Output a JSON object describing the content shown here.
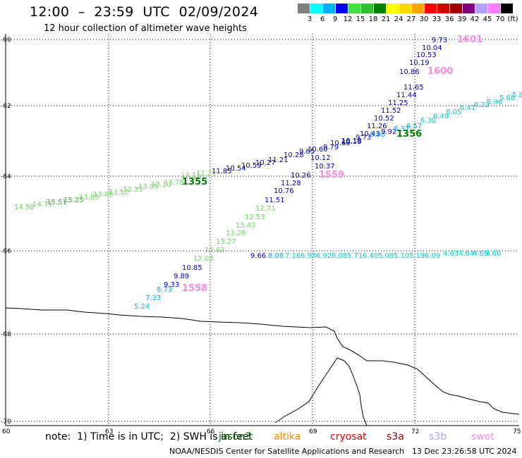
{
  "header": {
    "title": "12:00  –  23:59  UTC  02/09/2024",
    "subtitle": "12 hour collection of altimeter wave heights"
  },
  "legend": {
    "colors": [
      "#808080",
      "#00ffff",
      "#00b0ff",
      "#0000ff",
      "#40e040",
      "#30c030",
      "#008000",
      "#ffff00",
      "#ffd700",
      "#ffa500",
      "#ff0000",
      "#d00000",
      "#a00000",
      "#800080",
      "#b0a0ff",
      "#ff80ff",
      "#000000"
    ],
    "labels": [
      "3",
      "6",
      "9",
      "12",
      "15",
      "18",
      "21",
      "24",
      "27",
      "30",
      "33",
      "36",
      "39",
      "42",
      "45",
      "70",
      "(ft)"
    ]
  },
  "map": {
    "lat_labels": [
      "-60",
      "-62",
      "-64",
      "-66",
      "-68",
      "-70"
    ],
    "lon_labels": [
      "60",
      "63",
      "66",
      "69",
      "72",
      "75"
    ],
    "track_a": [
      {
        "v": "9.73",
        "c": "#0000cc"
      },
      {
        "v": "10.04",
        "c": "#0000cc"
      },
      {
        "v": "10.53",
        "c": "#0000cc"
      },
      {
        "v": "10.19",
        "c": "#0000cc"
      },
      {
        "v": "10.86",
        "c": "#0000cc"
      },
      {
        "v": "11.65",
        "c": "#0000cc"
      },
      {
        "v": "11.44",
        "c": "#0000cc"
      },
      {
        "v": "11.25",
        "c": "#0000cc"
      },
      {
        "v": "11.52",
        "c": "#0000cc"
      },
      {
        "v": "10.52",
        "c": "#0000cc"
      },
      {
        "v": "11.26",
        "c": "#0000cc"
      },
      {
        "v": "10.43",
        "c": "#0000cc"
      },
      {
        "v": "10.18",
        "c": "#0000cc"
      },
      {
        "v": "10.37",
        "c": "#0000cc"
      },
      {
        "v": "10.12",
        "c": "#0000cc"
      },
      {
        "v": "10.26",
        "c": "#0000cc"
      },
      {
        "v": "11.28",
        "c": "#0000cc"
      },
      {
        "v": "10.76",
        "c": "#0000cc"
      },
      {
        "v": "11.51",
        "c": "#0000cc"
      },
      {
        "v": "12.71",
        "c": "#66dd55"
      },
      {
        "v": "12.53",
        "c": "#66dd55"
      },
      {
        "v": "13.43",
        "c": "#66dd55"
      },
      {
        "v": "13.29",
        "c": "#66dd55"
      },
      {
        "v": "13.27",
        "c": "#66dd55"
      },
      {
        "v": "12.62",
        "c": "#66dd55"
      },
      {
        "v": "12.05",
        "c": "#66dd55"
      },
      {
        "v": "10.85",
        "c": "#0000cc"
      },
      {
        "v": "9.89",
        "c": "#0000cc"
      },
      {
        "v": "9.33",
        "c": "#0000cc"
      },
      {
        "v": "8.73",
        "c": "#00aaff"
      },
      {
        "v": "7.33",
        "c": "#00aaff"
      },
      {
        "v": "5.24",
        "c": "#00cccc"
      }
    ],
    "track_b": [
      {
        "v": "14.98",
        "c": "#66dd55"
      },
      {
        "v": "14.71",
        "c": "#66dd55"
      },
      {
        "v": "15.51",
        "c": "#33aa33"
      },
      {
        "v": "15.25",
        "c": "#33aa33"
      },
      {
        "v": "13.85",
        "c": "#66dd55"
      },
      {
        "v": "13.65",
        "c": "#66dd55"
      },
      {
        "v": "13.52",
        "c": "#66dd55"
      },
      {
        "v": "12.35",
        "c": "#66dd55"
      },
      {
        "v": "13.05",
        "c": "#66dd55"
      },
      {
        "v": "13.10",
        "c": "#66dd55"
      },
      {
        "v": "13.78",
        "c": "#66dd55"
      },
      {
        "v": "13.11",
        "c": "#66dd55"
      },
      {
        "v": "12.21",
        "c": "#66dd55"
      },
      {
        "v": "11.85",
        "c": "#0000cc"
      },
      {
        "v": "10.54",
        "c": "#0000cc"
      },
      {
        "v": "10.59",
        "c": "#0000cc"
      },
      {
        "v": "10.27",
        "c": "#0000cc"
      },
      {
        "v": "11.21",
        "c": "#0000cc"
      },
      {
        "v": "10.28",
        "c": "#0000cc"
      },
      {
        "v": "9.65",
        "c": "#0000cc"
      },
      {
        "v": "10.60",
        "c": "#0000cc"
      },
      {
        "v": "9.79",
        "c": "#0000cc"
      },
      {
        "v": "10.60",
        "c": "#0000cc"
      },
      {
        "v": "10.18",
        "c": "#0000cc"
      },
      {
        "v": "9.73",
        "c": "#0000cc"
      },
      {
        "v": "8.98",
        "c": "#00aaff"
      },
      {
        "v": "9.92",
        "c": "#0000cc"
      },
      {
        "v": "8.37",
        "c": "#00aaff"
      },
      {
        "v": "8.57",
        "c": "#00aaff"
      },
      {
        "v": "6.30",
        "c": "#00cccc"
      },
      {
        "v": "6.49",
        "c": "#00cccc"
      },
      {
        "v": "6.05",
        "c": "#00cccc"
      },
      {
        "v": "6.41",
        "c": "#00cccc"
      },
      {
        "v": "6.22",
        "c": "#00cccc"
      },
      {
        "v": "5.96",
        "c": "#00cccc"
      },
      {
        "v": "5.68",
        "c": "#00cccc"
      },
      {
        "v": "5.8",
        "c": "#00cccc"
      }
    ],
    "track_c": [
      {
        "v": "9.66",
        "c": "#0000cc"
      },
      {
        "v": "8.08",
        "c": "#00aaff"
      },
      {
        "v": "7.16",
        "c": "#00cccc"
      },
      {
        "v": "6.93",
        "c": "#00cccc"
      },
      {
        "v": "6.92",
        "c": "#00cccc"
      },
      {
        "v": "6.08",
        "c": "#00cccc"
      },
      {
        "v": "5.71",
        "c": "#00cccc"
      },
      {
        "v": "6.40",
        "c": "#00cccc"
      },
      {
        "v": "5.08",
        "c": "#00cccc"
      },
      {
        "v": "5.10",
        "c": "#00cccc"
      },
      {
        "v": "5.19",
        "c": "#00cccc"
      },
      {
        "v": "6.09",
        "c": "#00cccc"
      },
      {
        "v": "4.63",
        "c": "#00cccc"
      },
      {
        "v": "4.64",
        "c": "#00cccc"
      },
      {
        "v": "4.65",
        "c": "#00cccc"
      },
      {
        "v": "4.66",
        "c": "#00cccc"
      }
    ],
    "time_labels": [
      {
        "v": "1601",
        "c": "#ff88dd"
      },
      {
        "v": "1600",
        "c": "#ff88dd"
      },
      {
        "v": "1356",
        "c": "#008000"
      },
      {
        "v": "1559",
        "c": "#ff88dd"
      },
      {
        "v": "1355",
        "c": "#008000"
      },
      {
        "v": "1558",
        "c": "#ff88dd"
      }
    ]
  },
  "footer": {
    "note": "note:  1) Time is in UTC;  2) SWH is in feet",
    "satellites": [
      {
        "name": "jason3",
        "color": "#006400"
      },
      {
        "name": "altika",
        "color": "#ff8c00"
      },
      {
        "name": "cryosat",
        "color": "#e00000"
      },
      {
        "name": "s3a",
        "color": "#990000"
      },
      {
        "name": "s3b",
        "color": "#b0a0ff"
      },
      {
        "name": "swot",
        "color": "#ff88dd"
      }
    ],
    "credit": "NOAA/NESDIS Center for Satellite Applications and Research",
    "timestamp": "13 Dec 23:26:58 UTC 2024"
  }
}
